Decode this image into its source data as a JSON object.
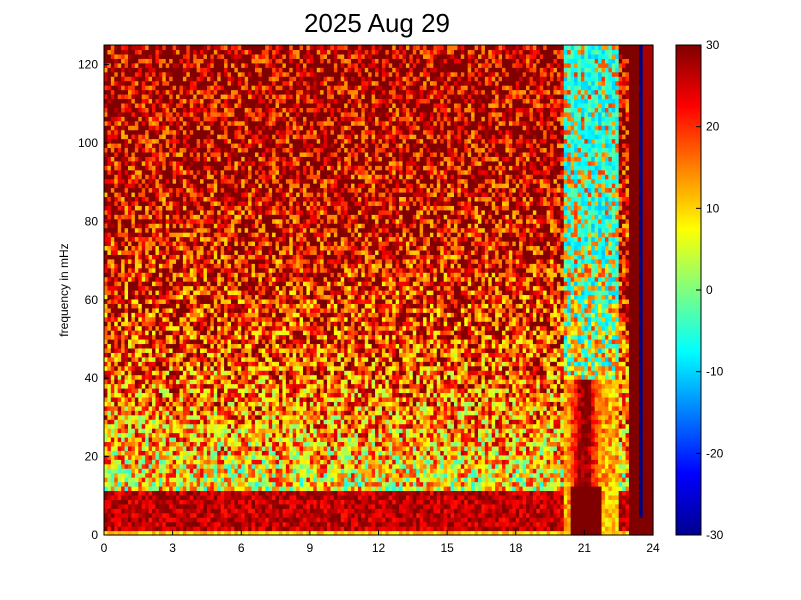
{
  "chart_data": {
    "type": "heatmap",
    "title": "2025 Aug 29",
    "xlabel": "",
    "ylabel": "frequency in mHz",
    "xlim": [
      0,
      24
    ],
    "ylim": [
      0,
      125
    ],
    "x_ticks": [
      "0",
      "3",
      "6",
      "9",
      "12",
      "15",
      "18",
      "21",
      "24"
    ],
    "y_ticks": [
      "0",
      "20",
      "40",
      "60",
      "80",
      "100",
      "120"
    ],
    "colorbar": {
      "range": [
        -30,
        30
      ],
      "ticks": [
        "30",
        "20",
        "10",
        "0",
        "-10",
        "-20",
        "-30"
      ],
      "colormap": "jet"
    },
    "features": [
      {
        "note": "strong power band near 0-10 mHz across the day",
        "value": 28
      },
      {
        "note": "broadband bright column",
        "x_hours": [
          20.1,
          22.5
        ],
        "value_range": [
          -5,
          30
        ]
      },
      {
        "note": "high-power spike",
        "x_hours": [
          23.0,
          24.0
        ],
        "value": 30
      }
    ]
  },
  "colors": {
    "jet_low": "#00008f",
    "jet_mid": "#7fff7f",
    "jet_high": "#800000"
  }
}
